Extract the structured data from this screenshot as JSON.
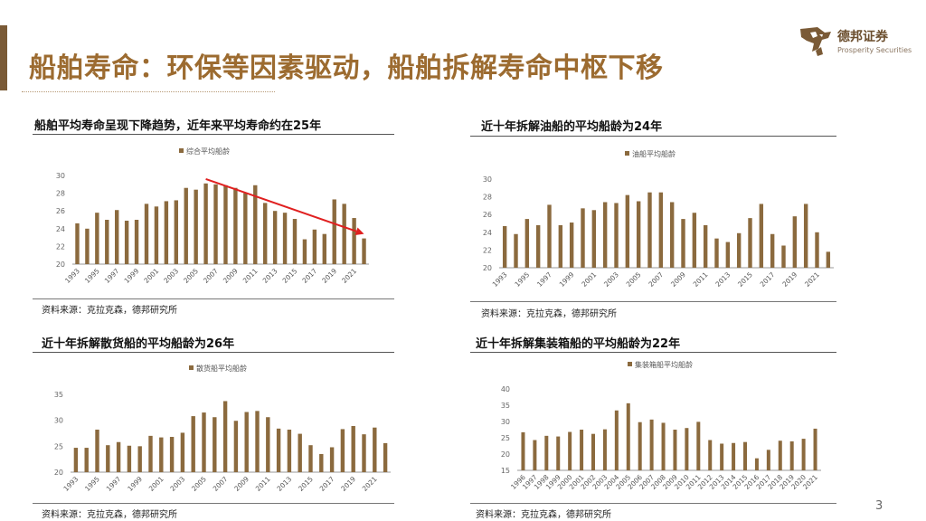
{
  "slide": {
    "title": "船舶寿命：环保等因素驱动，船舶拆解寿命中枢下移",
    "page_number": "3"
  },
  "logo": {
    "name_cn": "德邦证券",
    "name_en": "Prosperity Securities"
  },
  "colors": {
    "bar": "#8b6a3e",
    "accent_title": "#9c6b30",
    "trend_arrow": "#e02020",
    "axis": "#999999"
  },
  "chart_data": [
    {
      "type": "bar",
      "panel_title": "船舶平均寿命呈现下降趋势，近年来平均寿命约在25年",
      "legend": "综合平均船龄",
      "source": "资料来源：克拉克森，德邦研究所",
      "categories": [
        "1993",
        "1994",
        "1995",
        "1996",
        "1997",
        "1998",
        "1999",
        "2000",
        "2001",
        "2002",
        "2003",
        "2004",
        "2005",
        "2006",
        "2007",
        "2008",
        "2009",
        "2010",
        "2011",
        "2012",
        "2013",
        "2014",
        "2015",
        "2016",
        "2017",
        "2018",
        "2019",
        "2020",
        "2021",
        "2022"
      ],
      "tick_labels": [
        "1993",
        "1995",
        "1997",
        "1999",
        "2001",
        "2003",
        "2005",
        "2007",
        "2009",
        "2011",
        "2013",
        "2015",
        "2017",
        "2019",
        "2021"
      ],
      "values": [
        24.6,
        24.0,
        25.8,
        25.0,
        26.1,
        24.9,
        25.0,
        26.8,
        26.5,
        27.1,
        27.2,
        28.6,
        28.4,
        29.1,
        29.0,
        28.9,
        28.6,
        28.0,
        28.9,
        26.9,
        26.0,
        25.8,
        25.1,
        22.8,
        23.9,
        23.4,
        27.3,
        26.8,
        25.2,
        22.9
      ],
      "ylim": [
        20,
        30
      ],
      "yticks": [
        20,
        22,
        24,
        26,
        28,
        30
      ],
      "trend_arrow": {
        "from": {
          "x": "2006",
          "y": 29.6
        },
        "to": {
          "x": "2022",
          "y": 23.4
        }
      }
    },
    {
      "type": "bar",
      "panel_title": "近十年拆解油船的平均船龄为24年",
      "legend": "油船平均船龄",
      "source": "资料来源：克拉克森，德邦研究所",
      "categories": [
        "1993",
        "1994",
        "1995",
        "1996",
        "1997",
        "1998",
        "1999",
        "2000",
        "2001",
        "2002",
        "2003",
        "2004",
        "2005",
        "2006",
        "2007",
        "2008",
        "2009",
        "2010",
        "2011",
        "2012",
        "2013",
        "2014",
        "2015",
        "2016",
        "2017",
        "2018",
        "2019",
        "2020",
        "2021",
        "2022"
      ],
      "tick_labels": [
        "1993",
        "1995",
        "1997",
        "1999",
        "2001",
        "2003",
        "2005",
        "2007",
        "2009",
        "2011",
        "2013",
        "2015",
        "2017",
        "2019",
        "2021"
      ],
      "values": [
        24.7,
        23.8,
        25.5,
        24.8,
        27.1,
        24.8,
        25.1,
        26.7,
        26.5,
        27.4,
        27.3,
        28.2,
        27.5,
        28.5,
        28.5,
        27.4,
        25.5,
        26.2,
        24.8,
        23.3,
        22.9,
        23.9,
        25.6,
        27.2,
        23.8,
        22.5,
        25.8,
        27.2,
        24.0,
        21.8
      ],
      "ylim": [
        20,
        30
      ],
      "yticks": [
        20,
        22,
        24,
        26,
        28,
        30
      ]
    },
    {
      "type": "bar",
      "panel_title": "近十年拆解散货船的平均船龄为26年",
      "legend": "散货船平均船龄",
      "source": "资料来源：克拉克森，德邦研究所",
      "categories": [
        "1993",
        "1994",
        "1995",
        "1996",
        "1997",
        "1998",
        "1999",
        "2000",
        "2001",
        "2002",
        "2003",
        "2004",
        "2005",
        "2006",
        "2007",
        "2008",
        "2009",
        "2010",
        "2011",
        "2012",
        "2013",
        "2014",
        "2015",
        "2016",
        "2017",
        "2018",
        "2019",
        "2020",
        "2021",
        "2022"
      ],
      "tick_labels": [
        "1993",
        "1995",
        "1997",
        "1999",
        "2001",
        "2003",
        "2005",
        "2007",
        "2009",
        "2011",
        "2013",
        "2015",
        "2017",
        "2019",
        "2021"
      ],
      "values": [
        24.7,
        24.7,
        28.2,
        25.2,
        25.8,
        25.1,
        25.0,
        27.0,
        26.7,
        26.8,
        27.6,
        30.8,
        31.5,
        30.6,
        33.7,
        29.9,
        31.6,
        31.8,
        30.6,
        28.4,
        28.2,
        27.4,
        25.2,
        23.5,
        24.8,
        28.3,
        28.9,
        27.3,
        28.6,
        25.6
      ],
      "ylim": [
        20,
        35
      ],
      "yticks": [
        20,
        25,
        30,
        35
      ]
    },
    {
      "type": "bar",
      "panel_title": "近十年拆解集装箱船的平均船龄为22年",
      "legend": "集装箱船平均船龄",
      "source": "资料来源：克拉克森，德邦研究所",
      "categories": [
        "1996",
        "1997",
        "1998",
        "1999",
        "2000",
        "2001",
        "2002",
        "2003",
        "2004",
        "2005",
        "2006",
        "2007",
        "2008",
        "2009",
        "2010",
        "2011",
        "2012",
        "2013",
        "2014",
        "2015",
        "2016",
        "2017",
        "2018",
        "2019",
        "2020",
        "2021"
      ],
      "tick_labels": [
        "1996",
        "1997",
        "1998",
        "1999",
        "2000",
        "2001",
        "2002",
        "2003",
        "2004",
        "2005",
        "2006",
        "2007",
        "2008",
        "2009",
        "2010",
        "2011",
        "2012",
        "2013",
        "2014",
        "2015",
        "2016",
        "2017",
        "2018",
        "2019",
        "2020",
        "2021"
      ],
      "values": [
        26.7,
        24.3,
        25.6,
        25.4,
        26.8,
        27.5,
        26.2,
        27.6,
        33.4,
        35.6,
        29.8,
        30.6,
        29.6,
        27.5,
        28.0,
        29.9,
        24.3,
        23.2,
        23.4,
        23.7,
        18.7,
        21.3,
        24.1,
        23.9,
        24.7,
        27.8
      ],
      "ylim": [
        15,
        40
      ],
      "yticks": [
        15,
        20,
        25,
        30,
        35,
        40
      ]
    }
  ]
}
